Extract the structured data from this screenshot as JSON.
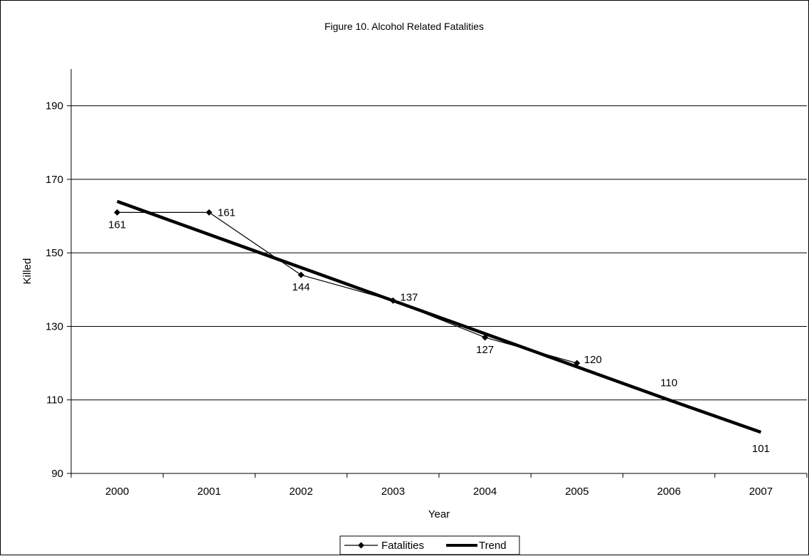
{
  "chart_data": {
    "type": "line",
    "title": "Figure 10. Alcohol Related Fatalities",
    "xlabel": "Year",
    "ylabel": "Killed",
    "categories": [
      "2000",
      "2001",
      "2002",
      "2003",
      "2004",
      "2005",
      "2006",
      "2007"
    ],
    "ylim": [
      90,
      200
    ],
    "yticks": [
      90,
      110,
      130,
      150,
      170,
      190
    ],
    "grid": "horizontal",
    "legend_position": "bottom",
    "series": [
      {
        "name": "Fatalities",
        "values": [
          161,
          161,
          144,
          137,
          127,
          120,
          null,
          null
        ],
        "labels": [
          "161",
          "161",
          "144",
          "137",
          "127",
          "120",
          "",
          ""
        ],
        "color": "#000000",
        "marker": "diamond"
      },
      {
        "name": "Trend",
        "values": [
          164.0,
          155.0,
          146.0,
          137.0,
          128.0,
          119.0,
          110.0,
          101.2
        ],
        "labels": [
          "",
          "",
          "",
          "",
          "",
          "",
          "110",
          "101"
        ],
        "color": "#000000",
        "marker": "none"
      }
    ]
  }
}
